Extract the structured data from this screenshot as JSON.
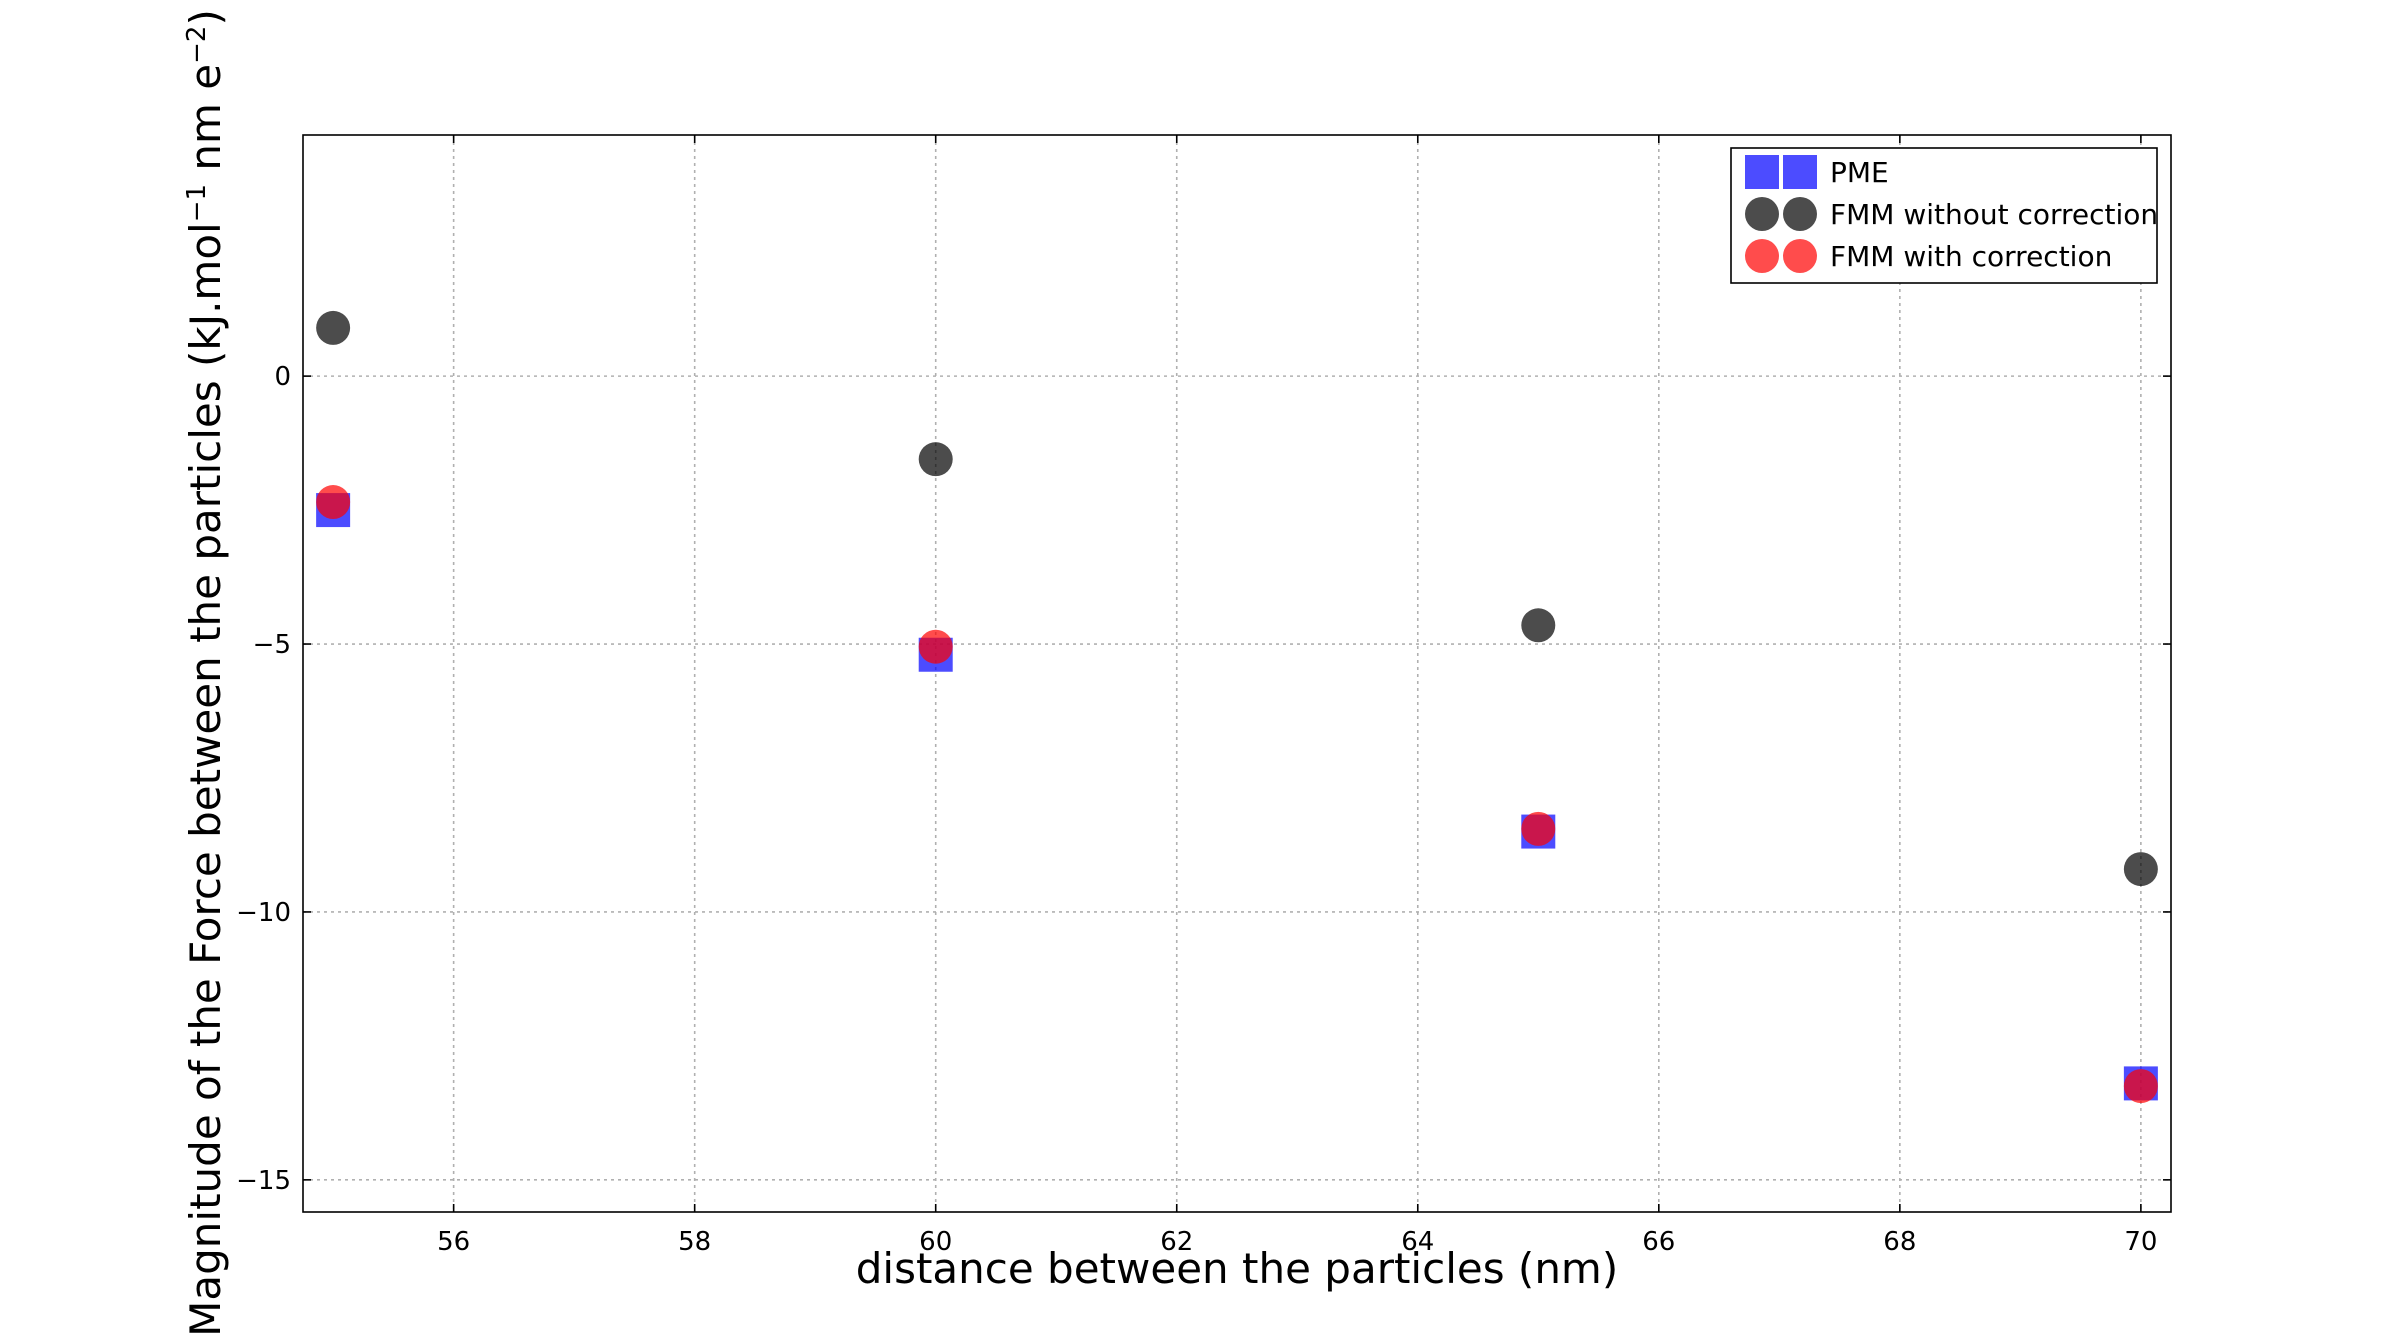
{
  "chart_data": {
    "type": "scatter",
    "title": "",
    "xlabel": "distance between the particles (nm)",
    "ylabel": "Magnitude of the Force between the particles (kJ.mol",
    "ylabel_sup1": "−1",
    "ylabel_mid": " nm e",
    "ylabel_sup2": "−2",
    "ylabel_end": ")",
    "xlim": [
      54.75,
      70.25
    ],
    "ylim": [
      -15.6,
      4.5
    ],
    "x_ticks": [
      56,
      58,
      60,
      62,
      64,
      66,
      68,
      70
    ],
    "y_ticks": [
      0,
      -5,
      -10,
      -15
    ],
    "x_tick_labels": [
      "56",
      "58",
      "60",
      "62",
      "64",
      "66",
      "68",
      "70"
    ],
    "y_tick_labels": [
      "0",
      "−5",
      "−10",
      "−15"
    ],
    "grid": true,
    "legend_position": "top-right",
    "series": [
      {
        "name": "PME",
        "marker": "square",
        "color": "#0000ff",
        "x": [
          55,
          60,
          65,
          70
        ],
        "y": [
          -2.5,
          -5.2,
          -8.5,
          -13.2
        ]
      },
      {
        "name": "FMM without correction",
        "marker": "circle",
        "color": "#000000",
        "x": [
          55,
          60,
          65,
          70
        ],
        "y": [
          0.9,
          -1.55,
          -4.65,
          -9.2
        ]
      },
      {
        "name": "FMM with correction",
        "marker": "circle",
        "color": "#ff0000",
        "x": [
          55,
          60,
          65,
          70
        ],
        "y": [
          -2.35,
          -5.05,
          -8.45,
          -13.25
        ]
      }
    ]
  }
}
